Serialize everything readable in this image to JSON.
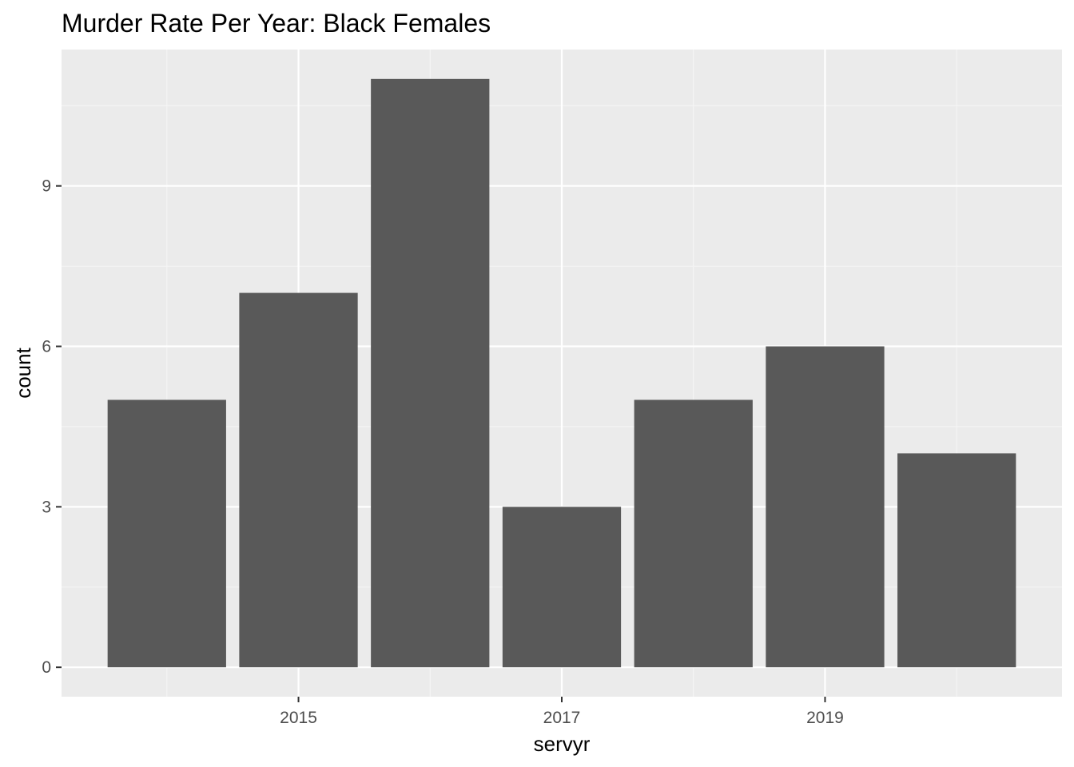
{
  "chart_data": {
    "type": "bar",
    "title": "Murder Rate Per Year: Black Females",
    "xlabel": "servyr",
    "ylabel": "count",
    "categories": [
      2014,
      2015,
      2016,
      2017,
      2018,
      2019,
      2020
    ],
    "values": [
      5,
      7,
      11,
      3,
      5,
      6,
      4
    ],
    "xlim": [
      2013.2,
      2020.8
    ],
    "ylim": [
      -0.55,
      11.55
    ],
    "x_ticks": [
      2015,
      2017,
      2019
    ],
    "x_tick_labels": [
      "2015",
      "2017",
      "2019"
    ],
    "y_ticks": [
      0,
      3,
      6,
      9
    ],
    "y_tick_labels": [
      "0",
      "3",
      "6",
      "9"
    ],
    "x_minor_gridlines": [
      2014,
      2016,
      2018,
      2020
    ],
    "y_minor_gridlines": [
      1.5,
      4.5,
      7.5,
      10.5
    ],
    "grid": true,
    "legend": "none",
    "colors": {
      "bar": "#595959",
      "panel": "#ebebeb",
      "grid_major": "#ffffff",
      "grid_minor": "#f5f5f5",
      "tick": "#333333"
    }
  }
}
